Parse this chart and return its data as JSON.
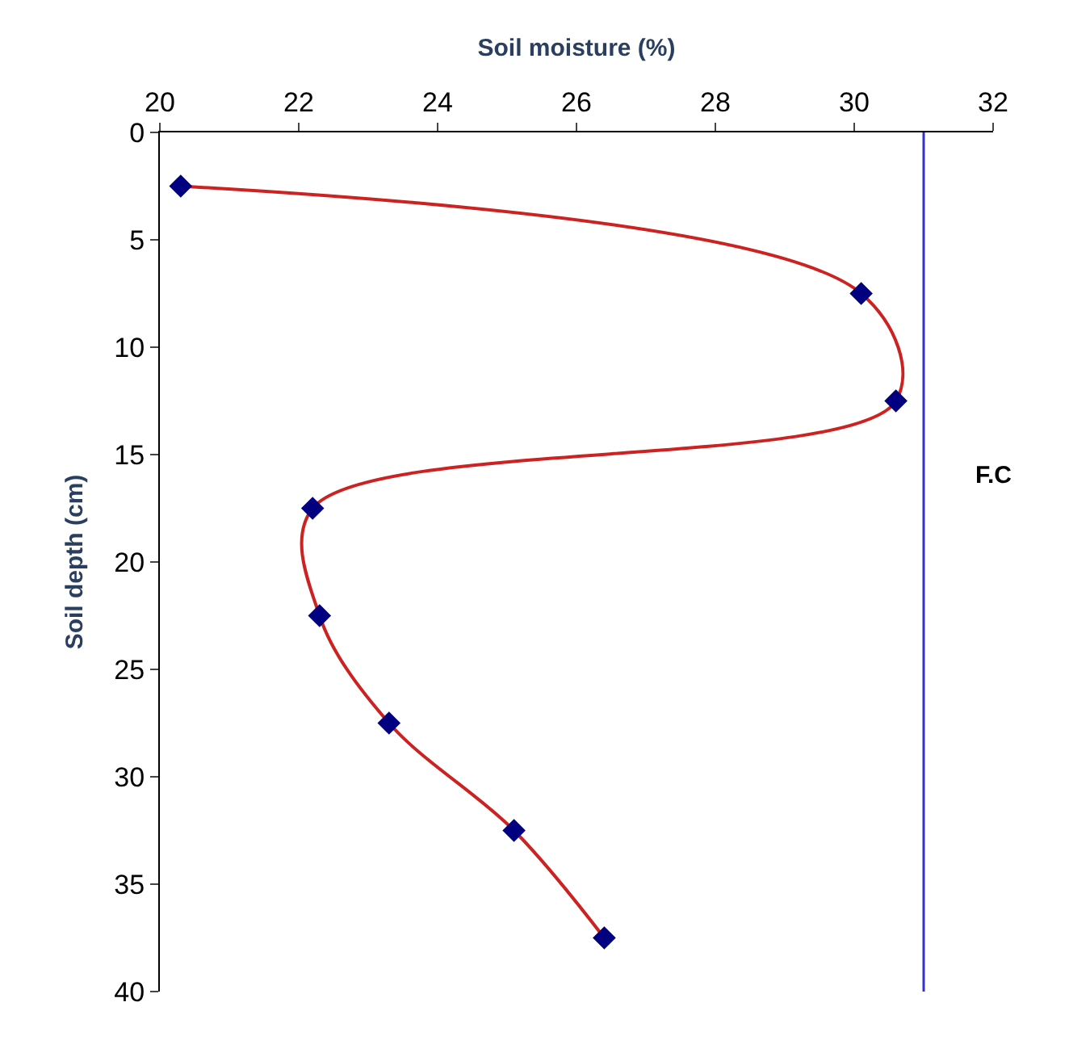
{
  "chart_data": {
    "type": "line",
    "xlabel": "Soil moisture (%)",
    "ylabel": "Soil depth (cm)",
    "x": [
      20.3,
      30.1,
      30.6,
      22.2,
      22.3,
      23.3,
      25.1,
      26.4
    ],
    "series": [
      {
        "color": "#000080",
        "values": [
          2.5,
          7.5,
          12.5,
          17.5,
          22.5,
          27.5,
          32.5,
          37.5
        ]
      }
    ],
    "marker": "diamond",
    "line_style": "solid",
    "xlim": [
      20,
      32
    ],
    "xticks": [
      20,
      22,
      24,
      26,
      28,
      30,
      32
    ],
    "ylim": [
      40,
      0
    ],
    "yticks": [
      0,
      5,
      10,
      15,
      20,
      25,
      30,
      35,
      40
    ],
    "ref_lines": [
      {
        "axis": "x",
        "value": 31.0,
        "label": "F.C",
        "color": "#3333cc"
      }
    ],
    "legend": false
  }
}
